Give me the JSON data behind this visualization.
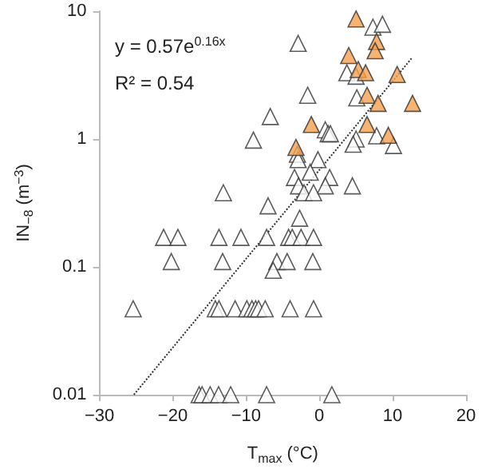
{
  "chart_data": {
    "type": "scatter",
    "xlabel": "T$_{max}$ (°C)",
    "ylabel": "IN$_{−8}$ (m$^{−3}$)",
    "annotations": [
      "y = 0.57e$^{0.16x}$",
      "R² = 0.54"
    ],
    "log": "y",
    "grid": false,
    "xlim": [
      -30,
      20
    ],
    "xticks": [
      {
        "value": -30,
        "label": "−30"
      },
      {
        "value": -20,
        "label": "−20"
      },
      {
        "value": -10,
        "label": "−10"
      },
      0,
      10,
      20
    ],
    "ylim": [
      0.01,
      10
    ],
    "yticks": [
      0.01,
      0.1,
      1,
      10
    ],
    "series": [
      {
        "marker": "triangle",
        "color": "#ffffff",
        "x": [
          -2.9,
          7.3,
          8.6,
          3.75,
          5.0,
          -1.6,
          5.1,
          -6.7,
          -9.0,
          0.8,
          1.2,
          1.5,
          7.8,
          5.0,
          4.6,
          10.1,
          -3.0,
          -2.9,
          -0.2,
          -1.25,
          -3.4,
          1.4,
          -2.85,
          0.8,
          4.5,
          -2.1,
          -0.8,
          -13.1,
          -7.0,
          -2.7,
          -21.25,
          -19.3,
          -13.7,
          -10.7,
          -7.2,
          -4.2,
          -3.7,
          -2.5,
          -0.8,
          -20.2,
          -13.2,
          -5.8,
          -4.4,
          -0.9,
          -6.3,
          -25.4,
          -14.2,
          -13.7,
          -11.5,
          -9.9,
          -9.2,
          -8.7,
          -8.3,
          -7.4,
          -4.0,
          -0.8,
          -16.4,
          -16.0,
          -14.9,
          -13.75,
          -12.1,
          -7.2,
          1.7
        ],
        "values": [
          5.6,
          7.5,
          7.9,
          3.3,
          3.1,
          2.2,
          2.1,
          1.5,
          0.98,
          1.18,
          1.1,
          1.1,
          1.06,
          1.0,
          0.91,
          0.89,
          0.76,
          0.69,
          0.69,
          0.55,
          0.5,
          0.5,
          0.43,
          0.43,
          0.43,
          0.38,
          0.38,
          0.38,
          0.3,
          0.24,
          0.17,
          0.17,
          0.17,
          0.17,
          0.17,
          0.17,
          0.17,
          0.17,
          0.17,
          0.11,
          0.11,
          0.11,
          0.11,
          0.11,
          0.094,
          0.047,
          0.047,
          0.047,
          0.047,
          0.047,
          0.047,
          0.047,
          0.047,
          0.047,
          0.047,
          0.047,
          0.01,
          0.01,
          0.01,
          0.01,
          0.01,
          0.01,
          0.01
        ]
      },
      {
        "marker": "triangle",
        "color": "#f5a04f",
        "x": [
          5.0,
          4.0,
          5.3,
          6.3,
          7.8,
          7.6,
          10.6,
          6.5,
          8.0,
          12.7,
          -1.1,
          6.5,
          9.4,
          -3.2
        ],
        "values": [
          8.7,
          4.5,
          3.5,
          3.3,
          5.8,
          4.9,
          3.2,
          2.2,
          1.9,
          1.9,
          1.3,
          1.3,
          1.07,
          0.86
        ]
      },
      {
        "type": "line",
        "marker": "none",
        "line_style": "dotted",
        "color": "#333333",
        "x": [
          -25.3,
          12.6
        ],
        "values": [
          0.01,
          4.3
        ]
      }
    ]
  }
}
